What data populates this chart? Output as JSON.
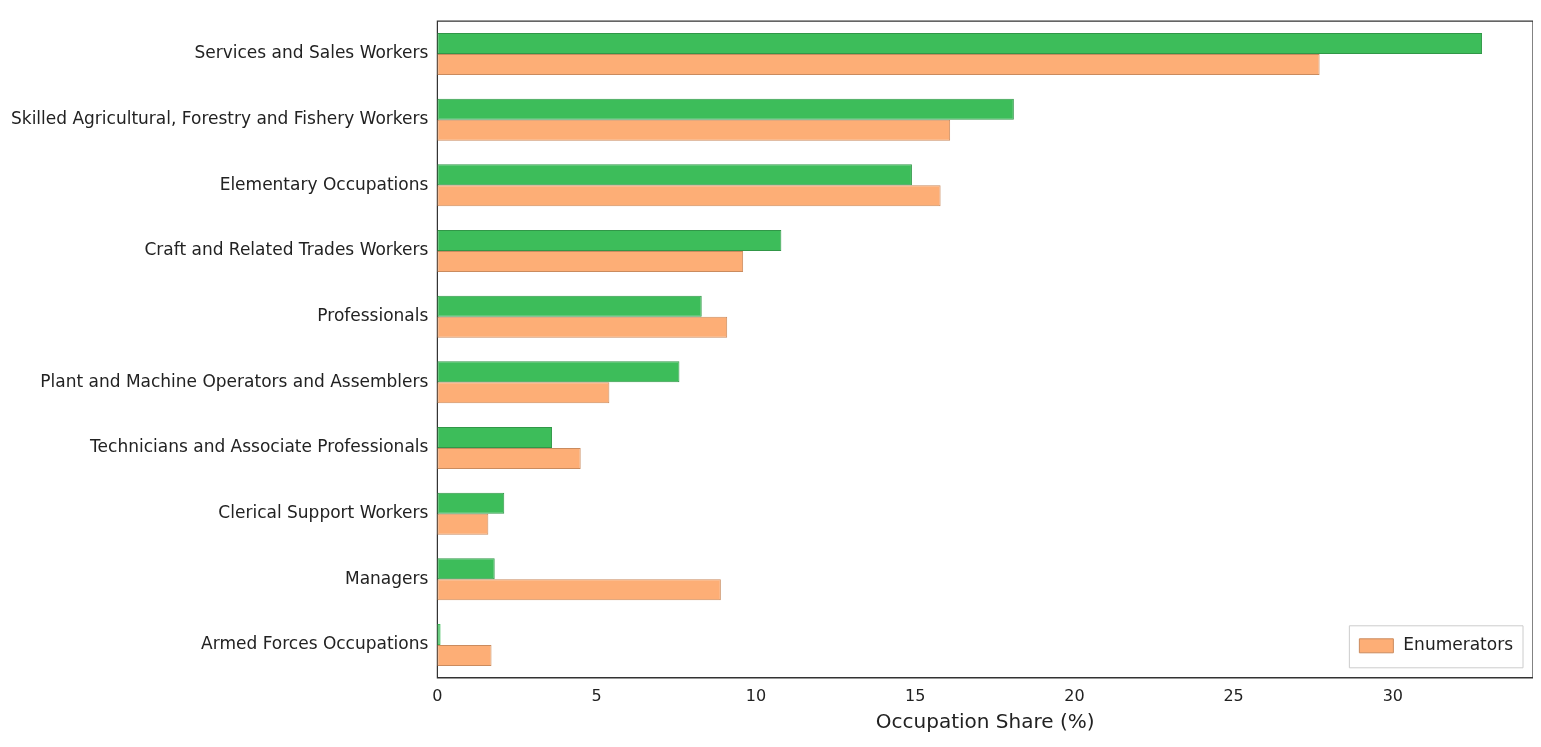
{
  "chart_data": {
    "type": "bar",
    "orientation": "horizontal",
    "xlabel": "Occupation Share (%)",
    "categories": [
      "Services and Sales Workers",
      "Skilled Agricultural, Forestry and Fishery Workers",
      "Elementary Occupations",
      "Craft and Related Trades Workers",
      "Professionals",
      "Plant and Machine Operators and Assemblers",
      "Technicians and Associate Professionals",
      "Clerical Support Workers",
      "Managers",
      "Armed Forces Occupations"
    ],
    "series": [
      {
        "color": "#3dbd5a",
        "values": [
          32.8,
          18.1,
          14.9,
          10.8,
          8.3,
          7.6,
          3.6,
          2.1,
          1.8,
          0.1
        ]
      },
      {
        "name": "Enumerators",
        "color": "#fdae76",
        "values": [
          27.7,
          16.1,
          15.8,
          9.6,
          9.1,
          5.4,
          4.5,
          1.6,
          8.9,
          1.7
        ]
      }
    ],
    "xlim": [
      0,
      34.4
    ],
    "xticks": [
      0,
      5,
      10,
      15,
      20,
      25,
      30
    ],
    "grid": false,
    "legend": "bottom right"
  }
}
